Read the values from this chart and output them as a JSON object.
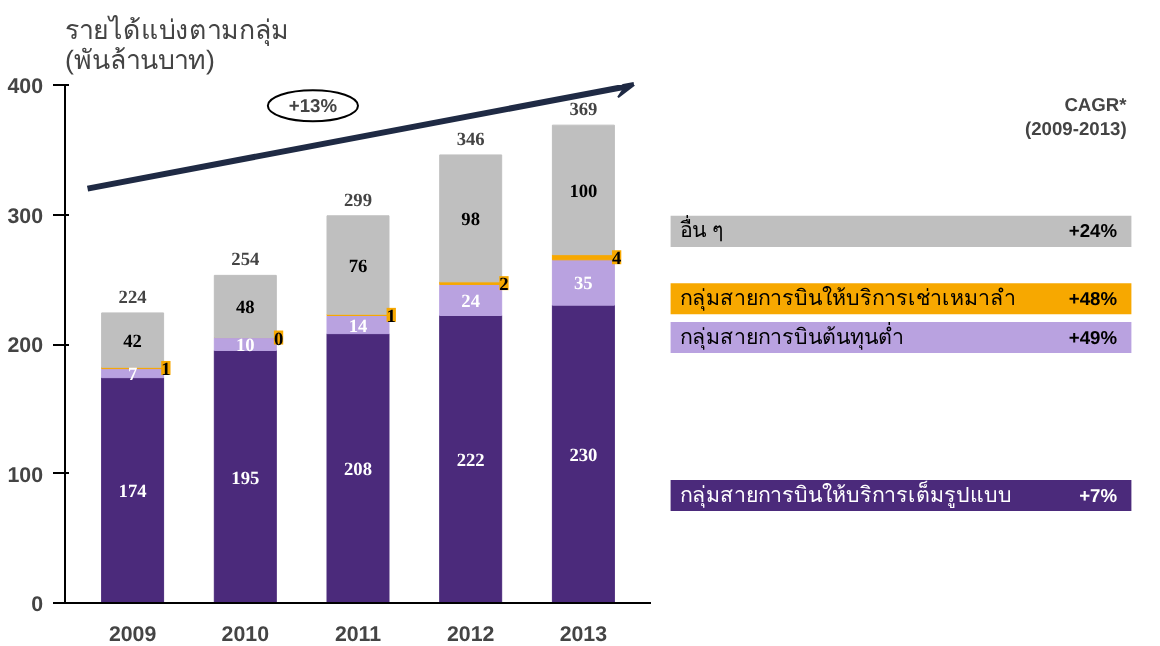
{
  "chart_data": {
    "type": "bar",
    "stacked": true,
    "ylabel": "รายได้แบ่งตามกลุ่ม\n(พันล้านบาท)",
    "legend_title": "CAGR*\n(2009-2013)",
    "categories": [
      "2009",
      "2010",
      "2011",
      "2012",
      "2013"
    ],
    "series": [
      {
        "name": "กลุ่มสายการบินให้บริการเต็มรูปแบบ",
        "color": "#4b2a7b",
        "values": [
          174,
          195,
          208,
          222,
          230
        ]
      },
      {
        "name": "กลุ่มสายการบินต้นทุนต่ำ",
        "color": "#b9a2e0",
        "values": [
          7,
          10,
          14,
          24,
          35
        ]
      },
      {
        "name": "กลุ่มสายการบินให้บริการเช่าเหมาลำ",
        "color": "#f7a800",
        "values": [
          1,
          0,
          1,
          2,
          4
        ],
        "value_labels": [
          "1",
          "0",
          "1",
          "2",
          "4"
        ]
      },
      {
        "name": "อื่น ๆ",
        "color": "#bfbfbf",
        "values": [
          42,
          48,
          76,
          98,
          100
        ]
      }
    ],
    "totals": [
      "224",
      "254",
      "299",
      "346",
      "369"
    ],
    "annotations": [
      "+13%",
      "+7%",
      "+49%",
      "+48%",
      "+24%"
    ],
    "data_labels": true,
    "legend": "right",
    "grid": false,
    "ylim": [
      0,
      400
    ],
    "yticks": [
      0,
      100,
      200,
      300,
      400
    ]
  }
}
